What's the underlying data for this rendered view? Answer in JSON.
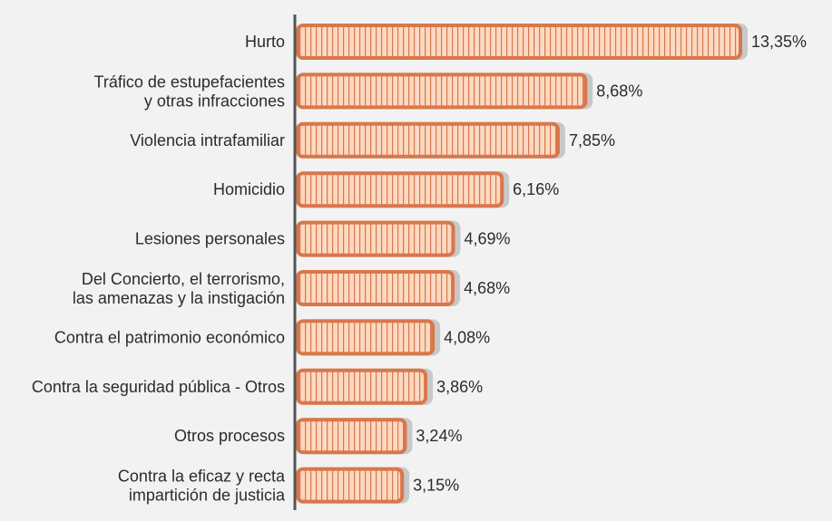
{
  "chart_data": {
    "type": "bar",
    "orientation": "horizontal",
    "categories": [
      [
        "Hurto"
      ],
      [
        "Tráfico de estupefacientes",
        "y otras infracciones"
      ],
      [
        "Violencia intrafamiliar"
      ],
      [
        "Homicidio"
      ],
      [
        "Lesiones personales"
      ],
      [
        "Del Concierto, el terrorismo,",
        "las amenazas y la instigación"
      ],
      [
        "Contra el patrimonio económico"
      ],
      [
        "Contra la seguridad pública - Otros"
      ],
      [
        "Otros procesos"
      ],
      [
        "Contra la eficaz y recta",
        "impartición de justicia"
      ]
    ],
    "values": [
      13.35,
      8.68,
      7.85,
      6.16,
      4.69,
      4.68,
      4.08,
      3.86,
      3.24,
      3.15
    ],
    "value_labels": [
      "13,35%",
      "8,68%",
      "7,85%",
      "6,16%",
      "4,69%",
      "4,68%",
      "4,08%",
      "3,86%",
      "3,24%",
      "3,15%"
    ],
    "xlim": [
      0,
      13.35
    ],
    "grid": false,
    "colors": {
      "bar_outline": "#d9774a",
      "bar_fill": "#fdd9c2",
      "bar_stripe": "#d9774a",
      "bar_shadow": "#c8c8c8",
      "axis": "#555555",
      "background": "#f2f2f2"
    }
  }
}
